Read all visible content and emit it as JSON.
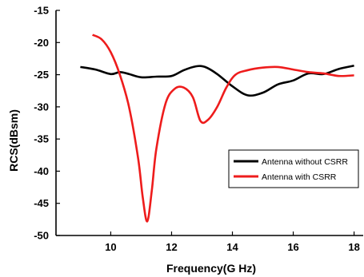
{
  "chart_data": {
    "type": "line",
    "xlabel": "Frequency(G Hz)",
    "ylabel": "RCS(dBsm)",
    "xlim": [
      8.2,
      18.3
    ],
    "ylim": [
      -50,
      -15
    ],
    "xticks": [
      10,
      12,
      14,
      16,
      18
    ],
    "yticks": [
      -15,
      -20,
      -25,
      -30,
      -35,
      -40,
      -45,
      -50
    ],
    "grid": false,
    "legend_position": "right",
    "series": [
      {
        "name": "Antenna without CSRR",
        "color": "#000000",
        "x": [
          9.0,
          9.5,
          10.0,
          10.3,
          10.6,
          11.0,
          11.5,
          12.0,
          12.4,
          12.8,
          13.1,
          13.5,
          14.0,
          14.5,
          15.0,
          15.5,
          16.0,
          16.5,
          17.0,
          17.5,
          18.0
        ],
        "y": [
          -23.8,
          -24.2,
          -24.9,
          -24.6,
          -24.9,
          -25.4,
          -25.3,
          -25.2,
          -24.3,
          -23.7,
          -23.8,
          -24.9,
          -26.8,
          -28.2,
          -27.8,
          -26.5,
          -25.9,
          -24.8,
          -24.9,
          -24.1,
          -23.6
        ]
      },
      {
        "name": "Antenna with CSRR",
        "color": "#ee1c1c",
        "x": [
          9.4,
          9.7,
          10.0,
          10.3,
          10.6,
          10.9,
          11.05,
          11.2,
          11.35,
          11.5,
          11.8,
          12.1,
          12.4,
          12.7,
          12.95,
          13.2,
          13.5,
          13.8,
          14.1,
          14.5,
          15.0,
          15.5,
          16.0,
          16.5,
          17.0,
          17.5,
          18.0
        ],
        "y": [
          -18.8,
          -19.5,
          -21.5,
          -25.0,
          -30.0,
          -38.0,
          -44.0,
          -47.8,
          -43.0,
          -36.5,
          -29.5,
          -27.2,
          -27.0,
          -28.5,
          -32.2,
          -32.0,
          -30.0,
          -27.0,
          -25.0,
          -24.3,
          -23.9,
          -23.8,
          -24.2,
          -24.6,
          -24.8,
          -25.2,
          -25.1
        ]
      }
    ]
  }
}
